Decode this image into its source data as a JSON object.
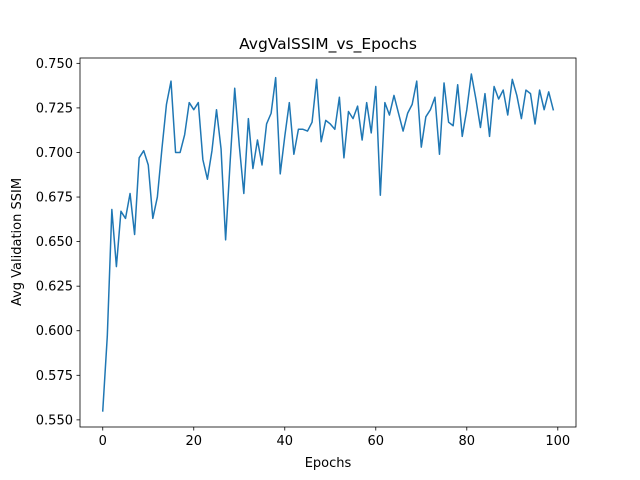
{
  "chart_data": {
    "type": "line",
    "title": "AvgValSSIM_vs_Epochs",
    "xlabel": "Epochs",
    "ylabel": "Avg Validation SSIM",
    "xlim": [
      -5,
      104
    ],
    "ylim": [
      0.546,
      0.753
    ],
    "xticks": [
      0,
      20,
      40,
      60,
      80,
      100
    ],
    "yticks": [
      0.55,
      0.575,
      0.6,
      0.625,
      0.65,
      0.675,
      0.7,
      0.725,
      0.75
    ],
    "ytick_labels": [
      "0.550",
      "0.575",
      "0.600",
      "0.625",
      "0.650",
      "0.675",
      "0.700",
      "0.725",
      "0.750"
    ],
    "grid": false,
    "series": [
      {
        "color": "#1f77b4",
        "x": [
          0,
          1,
          2,
          3,
          4,
          5,
          6,
          7,
          8,
          9,
          10,
          11,
          12,
          13,
          14,
          15,
          16,
          17,
          18,
          19,
          20,
          21,
          22,
          23,
          24,
          25,
          26,
          27,
          28,
          29,
          30,
          31,
          32,
          33,
          34,
          35,
          36,
          37,
          38,
          39,
          40,
          41,
          42,
          43,
          44,
          45,
          46,
          47,
          48,
          49,
          50,
          51,
          52,
          53,
          54,
          55,
          56,
          57,
          58,
          59,
          60,
          61,
          62,
          63,
          64,
          65,
          66,
          67,
          68,
          69,
          70,
          71,
          72,
          73,
          74,
          75,
          76,
          77,
          78,
          79,
          80,
          81,
          82,
          83,
          84,
          85,
          86,
          87,
          88,
          89,
          90,
          91,
          92,
          93,
          94,
          95,
          96,
          97,
          98,
          99
        ],
        "y": [
          0.555,
          0.597,
          0.668,
          0.636,
          0.667,
          0.663,
          0.677,
          0.654,
          0.697,
          0.701,
          0.693,
          0.663,
          0.675,
          0.702,
          0.727,
          0.74,
          0.7,
          0.7,
          0.71,
          0.728,
          0.724,
          0.728,
          0.696,
          0.685,
          0.701,
          0.724,
          0.702,
          0.651,
          0.695,
          0.736,
          0.704,
          0.677,
          0.719,
          0.691,
          0.707,
          0.693,
          0.716,
          0.722,
          0.742,
          0.688,
          0.709,
          0.728,
          0.699,
          0.713,
          0.713,
          0.712,
          0.717,
          0.741,
          0.706,
          0.718,
          0.716,
          0.713,
          0.731,
          0.697,
          0.723,
          0.719,
          0.726,
          0.707,
          0.728,
          0.711,
          0.737,
          0.676,
          0.728,
          0.721,
          0.732,
          0.722,
          0.712,
          0.722,
          0.727,
          0.74,
          0.703,
          0.72,
          0.724,
          0.731,
          0.699,
          0.739,
          0.717,
          0.715,
          0.738,
          0.709,
          0.724,
          0.744,
          0.73,
          0.714,
          0.733,
          0.709,
          0.737,
          0.73,
          0.735,
          0.721,
          0.741,
          0.732,
          0.719,
          0.735,
          0.733,
          0.716,
          0.735,
          0.724,
          0.734,
          0.724
        ]
      }
    ]
  }
}
